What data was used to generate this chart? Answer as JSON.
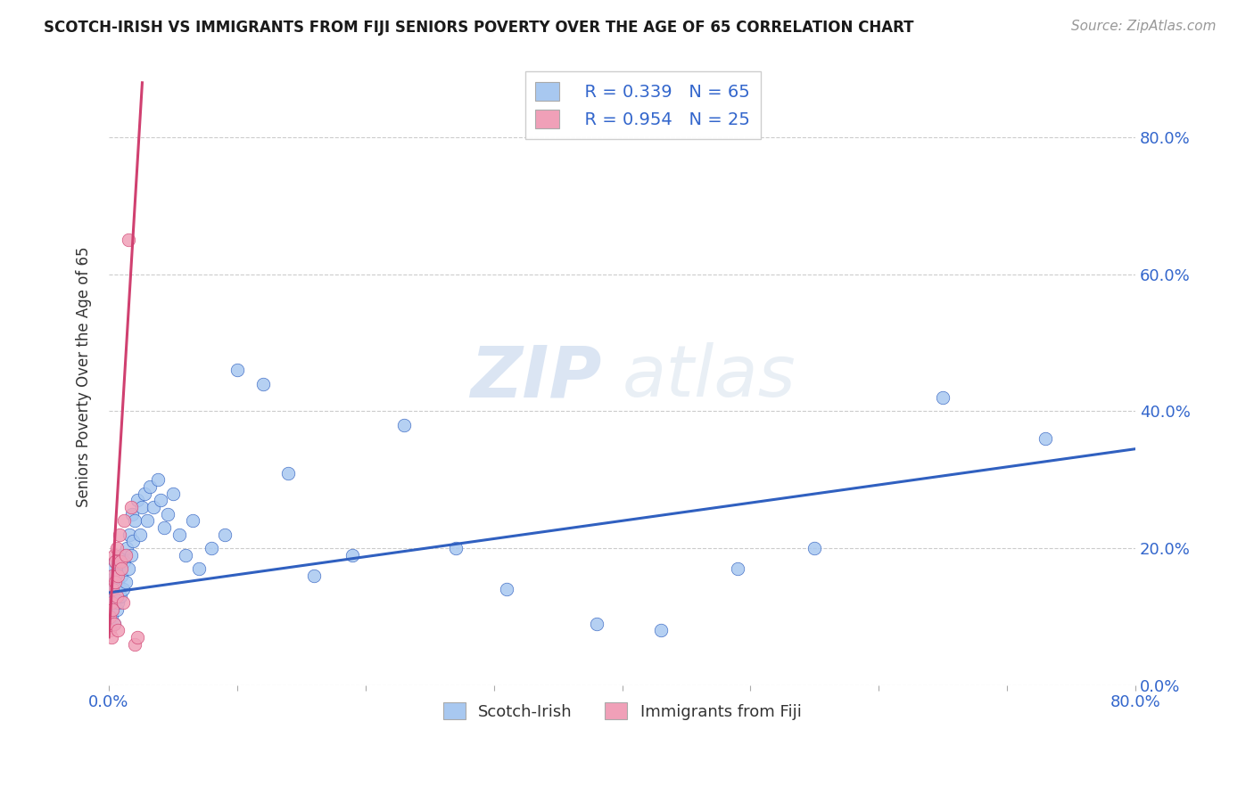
{
  "title": "SCOTCH-IRISH VS IMMIGRANTS FROM FIJI SENIORS POVERTY OVER THE AGE OF 65 CORRELATION CHART",
  "source": "Source: ZipAtlas.com",
  "ylabel": "Seniors Poverty Over the Age of 65",
  "xmin": 0.0,
  "xmax": 0.8,
  "ymin": 0.0,
  "ymax": 0.9,
  "xtick_vals": [
    0.0,
    0.1,
    0.2,
    0.3,
    0.4,
    0.5,
    0.6,
    0.7,
    0.8
  ],
  "xtick_show_labels": [
    0.0,
    0.8
  ],
  "yticks": [
    0.0,
    0.2,
    0.4,
    0.6,
    0.8
  ],
  "right_ytick_labels": [
    "0.0%",
    "20.0%",
    "40.0%",
    "60.0%",
    "80.0%"
  ],
  "blue_color": "#a8c8f0",
  "pink_color": "#f0a0b8",
  "blue_line_color": "#3060c0",
  "pink_line_color": "#d04070",
  "legend_blue_R": "R = 0.339",
  "legend_blue_N": "N = 65",
  "legend_pink_R": "R = 0.954",
  "legend_pink_N": "N = 25",
  "legend_label_blue": "Scotch-Irish",
  "legend_label_pink": "Immigrants from Fiji",
  "watermark_zip": "ZIP",
  "watermark_atlas": "atlas",
  "blue_scatter_x": [
    0.001,
    0.001,
    0.002,
    0.002,
    0.002,
    0.003,
    0.003,
    0.003,
    0.004,
    0.004,
    0.004,
    0.005,
    0.005,
    0.005,
    0.006,
    0.006,
    0.007,
    0.007,
    0.008,
    0.008,
    0.009,
    0.01,
    0.01,
    0.011,
    0.012,
    0.013,
    0.014,
    0.015,
    0.016,
    0.017,
    0.018,
    0.019,
    0.02,
    0.022,
    0.024,
    0.026,
    0.028,
    0.03,
    0.032,
    0.035,
    0.038,
    0.04,
    0.043,
    0.046,
    0.05,
    0.055,
    0.06,
    0.065,
    0.07,
    0.08,
    0.09,
    0.1,
    0.12,
    0.14,
    0.16,
    0.19,
    0.23,
    0.27,
    0.31,
    0.38,
    0.43,
    0.49,
    0.55,
    0.65,
    0.73
  ],
  "blue_scatter_y": [
    0.12,
    0.15,
    0.1,
    0.14,
    0.16,
    0.11,
    0.13,
    0.17,
    0.12,
    0.15,
    0.09,
    0.14,
    0.16,
    0.18,
    0.13,
    0.11,
    0.15,
    0.12,
    0.14,
    0.17,
    0.13,
    0.16,
    0.19,
    0.14,
    0.18,
    0.15,
    0.2,
    0.17,
    0.22,
    0.19,
    0.25,
    0.21,
    0.24,
    0.27,
    0.22,
    0.26,
    0.28,
    0.24,
    0.29,
    0.26,
    0.3,
    0.27,
    0.23,
    0.25,
    0.28,
    0.22,
    0.19,
    0.24,
    0.17,
    0.2,
    0.22,
    0.46,
    0.44,
    0.31,
    0.16,
    0.19,
    0.38,
    0.2,
    0.14,
    0.09,
    0.08,
    0.17,
    0.2,
    0.42,
    0.36
  ],
  "pink_scatter_x": [
    0.001,
    0.001,
    0.002,
    0.002,
    0.003,
    0.003,
    0.003,
    0.004,
    0.004,
    0.005,
    0.005,
    0.006,
    0.006,
    0.007,
    0.007,
    0.008,
    0.009,
    0.01,
    0.011,
    0.012,
    0.013,
    0.015,
    0.017,
    0.02,
    0.022
  ],
  "pink_scatter_y": [
    0.1,
    0.08,
    0.12,
    0.07,
    0.14,
    0.11,
    0.16,
    0.09,
    0.19,
    0.15,
    0.18,
    0.13,
    0.2,
    0.08,
    0.16,
    0.22,
    0.18,
    0.17,
    0.12,
    0.24,
    0.19,
    0.65,
    0.26,
    0.06,
    0.07
  ],
  "blue_trendline_x": [
    0.0,
    0.8
  ],
  "blue_trendline_y": [
    0.135,
    0.345
  ],
  "pink_trendline_x": [
    0.0,
    0.026
  ],
  "pink_trendline_y": [
    0.07,
    0.88
  ]
}
